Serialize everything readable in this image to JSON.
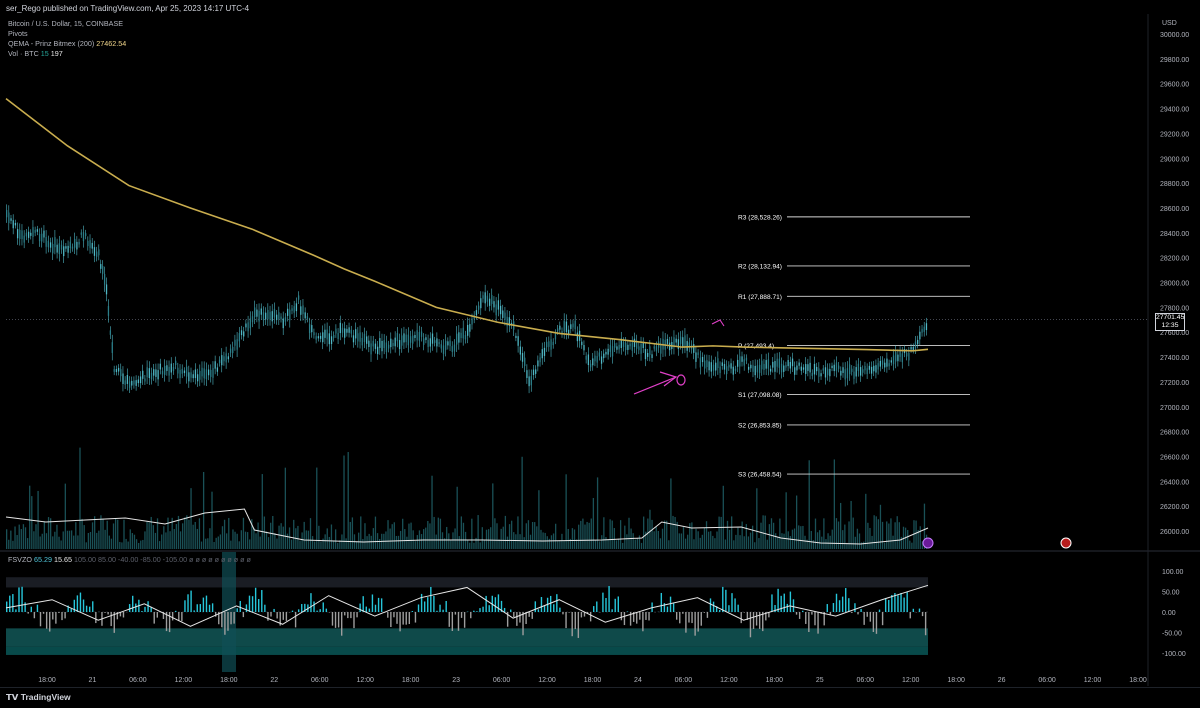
{
  "header": {
    "publish_text": "ser_Rego published on TradingView.com, Apr 25, 2023 14:17 UTC-4"
  },
  "legend": {
    "symbol_line": "Bitcoin / U.S. Dollar, 15, COINBASE",
    "pivots_label": "Pivots",
    "ema_label": "QEMA - Prinz Bitmex (200)",
    "ema_value": "27462.54",
    "vol_label": "Vol · BTC",
    "vol_period": "15",
    "vol_value": "197"
  },
  "oscillator_legend": {
    "name": "FSVZO",
    "value1": "65.29",
    "value2": "15.65",
    "params": "105.00  85.00  -40.00  -85.00  -105.00  ø ø ø ø ø ø ø ø ø ø"
  },
  "currency": "USD",
  "current_price": {
    "price": "27701.45",
    "countdown": "12:35"
  },
  "footer": {
    "logo_text": "TradingView"
  },
  "colors": {
    "background": "#000000",
    "candle": "#4fb8c6",
    "ema": "#c9ad4e",
    "pivot_lines": "#d6d6d6",
    "annotation": "#e040c8",
    "oscillator_band": "#0f4a4a"
  },
  "chart_data": [
    {
      "type": "line",
      "title": "Bitcoin / U.S. Dollar, 15, COINBASE",
      "x_tick_labels": [
        "18:00",
        "21",
        "06:00",
        "12:00",
        "18:00",
        "22",
        "06:00",
        "12:00",
        "18:00",
        "23",
        "06:00",
        "12:00",
        "18:00",
        "24",
        "06:00",
        "12:00",
        "18:00",
        "25",
        "06:00",
        "12:00",
        "18:00",
        "26",
        "06:00",
        "12:00",
        "18:00"
      ],
      "y_axis_labels": [
        "30000.00",
        "29800.00",
        "29600.00",
        "29400.00",
        "29200.00",
        "29000.00",
        "28800.00",
        "28600.00",
        "28400.00",
        "28200.00",
        "28000.00",
        "27800.00",
        "27600.00",
        "27400.00",
        "27200.00",
        "27000.00",
        "26800.00",
        "26600.00",
        "26400.00",
        "26200.00",
        "26000.00"
      ],
      "ylim": [
        25900,
        30050
      ],
      "series": [
        {
          "name": "QEMA - Prinz Bitmex (200)",
          "x": [
            0,
            8,
            16,
            24,
            32,
            40,
            44,
            48,
            56,
            64,
            72,
            80,
            84,
            88,
            92,
            96,
            104,
            112,
            118,
            120
          ],
          "values": [
            29480,
            29100,
            28780,
            28600,
            28430,
            28220,
            28110,
            28010,
            27800,
            27680,
            27590,
            27540,
            27510,
            27480,
            27490,
            27480,
            27470,
            27460,
            27450,
            27462.54
          ]
        },
        {
          "name": "Bitcoin / U.S. Dollar",
          "x": [
            0,
            2,
            4,
            6,
            8,
            10,
            12,
            13,
            14,
            16,
            18,
            20,
            22,
            24,
            26,
            28,
            30,
            32,
            34,
            36,
            38,
            40,
            42,
            44,
            46,
            48,
            50,
            52,
            54,
            56,
            58,
            60,
            62,
            64,
            66,
            68,
            70,
            72,
            74,
            76,
            78,
            80,
            82,
            84,
            86,
            88,
            90,
            92,
            94,
            96,
            98,
            100,
            102,
            104,
            106,
            108,
            110,
            112,
            114,
            116,
            118,
            120
          ],
          "values": [
            28580,
            28360,
            28400,
            28300,
            28260,
            28380,
            28210,
            27950,
            27300,
            27200,
            27240,
            27300,
            27320,
            27240,
            27260,
            27360,
            27500,
            27720,
            27760,
            27700,
            27850,
            27560,
            27560,
            27620,
            27540,
            27480,
            27500,
            27560,
            27560,
            27500,
            27480,
            27600,
            27890,
            27790,
            27650,
            27200,
            27450,
            27610,
            27640,
            27320,
            27440,
            27500,
            27480,
            27440,
            27510,
            27520,
            27400,
            27330,
            27310,
            27360,
            27300,
            27320,
            27330,
            27300,
            27260,
            27310,
            27280,
            27300,
            27340,
            27400,
            27450,
            27701.45
          ]
        }
      ],
      "pivots": [
        {
          "label": "R3 (28,528.26)",
          "value": 28528.26
        },
        {
          "label": "R2 (28,132.94)",
          "value": 28132.94
        },
        {
          "label": "R1 (27,888.71)",
          "value": 27888.71
        },
        {
          "label": "P (27,493.4)",
          "value": 27493.4
        },
        {
          "label": "S1 (27,098.08)",
          "value": 27098.08
        },
        {
          "label": "S2 (26,853.85)",
          "value": 26853.85
        },
        {
          "label": "S3 (26,458.54)",
          "value": 26458.54
        }
      ]
    },
    {
      "type": "line",
      "title": "FSVZO",
      "y_axis_labels": [
        "100.00",
        "50.00",
        "0.00",
        "-50.00",
        "-100.00"
      ],
      "ylim": [
        -110,
        110
      ],
      "series": [
        {
          "name": "FSVZO",
          "x": [
            0,
            6,
            12,
            18,
            24,
            30,
            36,
            42,
            48,
            54,
            60,
            66,
            72,
            78,
            84,
            90,
            96,
            102,
            108,
            114,
            120
          ],
          "values": [
            10,
            30,
            -20,
            20,
            -35,
            15,
            -30,
            40,
            -10,
            35,
            60,
            -15,
            30,
            -25,
            10,
            35,
            -20,
            15,
            -10,
            30,
            65.29
          ]
        }
      ]
    }
  ]
}
